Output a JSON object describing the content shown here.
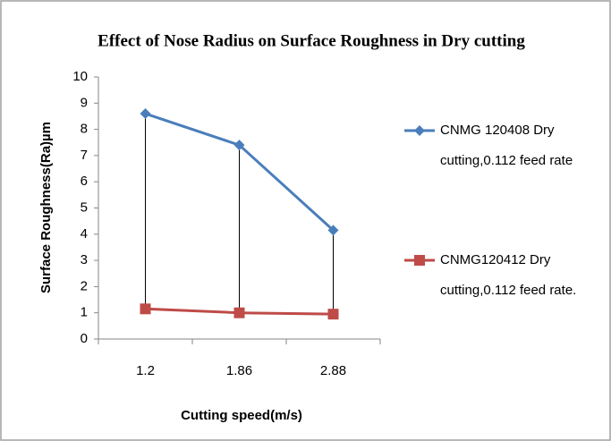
{
  "chart_data": {
    "type": "line",
    "title": "Effect of Nose Radius on Surface Roughness in Dry cutting",
    "x_label": "Cutting speed(m/s)",
    "y_label": "Surface Roughness(Ra)µm",
    "categories": [
      "1.2",
      "1.86",
      "2.88"
    ],
    "series": [
      {
        "name": "CNMG 120408 Dry cutting,0.112 feed rate",
        "color": "#4a7ebb",
        "marker": "diamond",
        "values": [
          8.6,
          7.4,
          4.15
        ]
      },
      {
        "name": "CNMG120412 Dry cutting,0.112 feed rate.",
        "color": "#be4b48",
        "marker": "square",
        "values": [
          1.15,
          1.0,
          0.95
        ]
      }
    ],
    "drop_lines": true,
    "ylim": [
      0,
      10
    ],
    "yticks": [
      0,
      1,
      2,
      3,
      4,
      5,
      6,
      7,
      8,
      9,
      10
    ],
    "grid": false
  }
}
